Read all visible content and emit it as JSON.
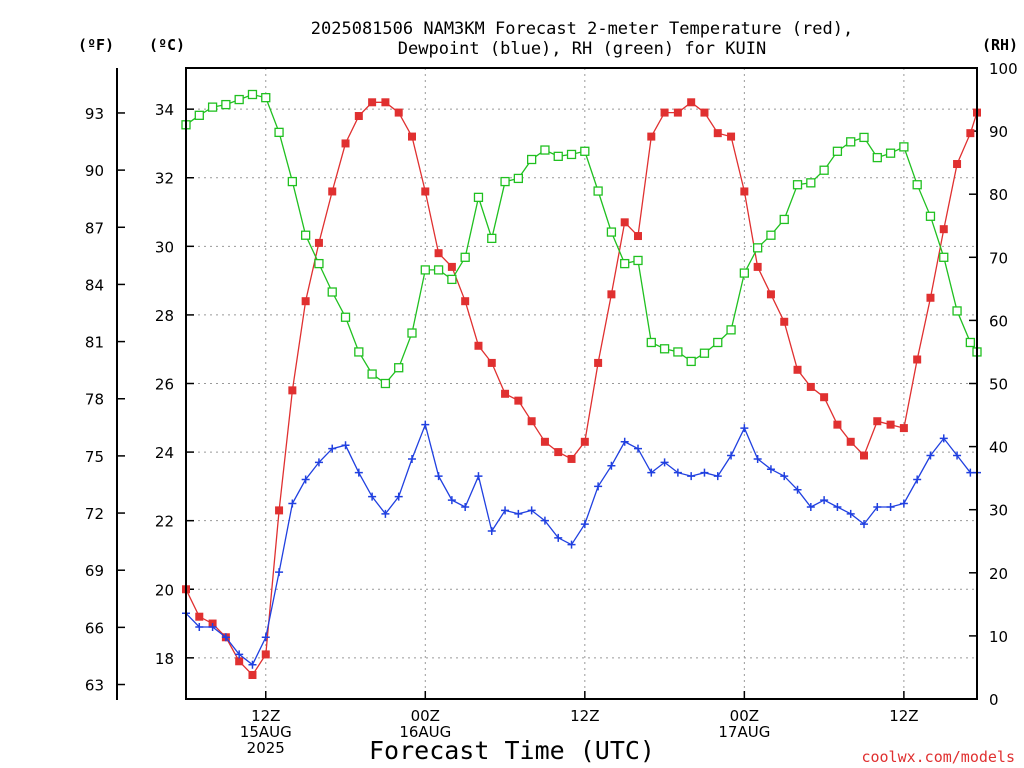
{
  "chart_data": {
    "type": "line",
    "title_lines": [
      "2025081506 NAM3KM Forecast 2-meter Temperature (red),",
      "Dewpoint (blue), RH (green) for KUIN"
    ],
    "xlabel": "Forecast Time (UTC)",
    "credit": "coolwx.com/models",
    "units": {
      "fahrenheit": "(ºF)",
      "celsius": "(ºC)",
      "rh": "(RH)"
    },
    "x_ticks": [
      {
        "hour": 12,
        "lines": [
          "12Z",
          "15AUG",
          "2025"
        ]
      },
      {
        "hour": 24,
        "lines": [
          "00Z",
          "16AUG"
        ]
      },
      {
        "hour": 36,
        "lines": [
          "12Z"
        ]
      },
      {
        "hour": 48,
        "lines": [
          "00Z",
          "17AUG"
        ]
      },
      {
        "hour": 60,
        "lines": [
          "12Z"
        ]
      }
    ],
    "xlim": [
      6,
      65.5
    ],
    "celsius_ticks": [
      18,
      20,
      22,
      24,
      26,
      28,
      30,
      32,
      34
    ],
    "celsius_lim": [
      16.8,
      35.2
    ],
    "fahrenheit_ticks": [
      63,
      66,
      69,
      72,
      75,
      78,
      81,
      84,
      87,
      90,
      93
    ],
    "rh_ticks": [
      0,
      10,
      20,
      30,
      40,
      50,
      60,
      70,
      80,
      90,
      100
    ],
    "rh_lim": [
      0,
      100
    ],
    "grid": true,
    "series": [
      {
        "name": "Temperature",
        "unit": "C",
        "color": "#e03030",
        "marker": "filled-square",
        "x": [
          6,
          7,
          8,
          9,
          10,
          11,
          12,
          13,
          14,
          15,
          16,
          17,
          18,
          19,
          20,
          21,
          22,
          23,
          24,
          25,
          26,
          27,
          28,
          29,
          30,
          31,
          32,
          33,
          34,
          35,
          36,
          37,
          38,
          39,
          40,
          41,
          42,
          43,
          44,
          45,
          46,
          47,
          48,
          49,
          50,
          51,
          52,
          53,
          54,
          55,
          56,
          57,
          58,
          59,
          60,
          61,
          62,
          63,
          64,
          65,
          65.5
        ],
        "values": [
          20.0,
          19.2,
          19.0,
          18.6,
          17.9,
          17.5,
          18.1,
          22.3,
          25.8,
          28.4,
          30.1,
          31.6,
          33.0,
          33.8,
          34.2,
          34.2,
          33.9,
          33.2,
          31.6,
          29.8,
          29.4,
          28.4,
          27.1,
          26.6,
          25.7,
          25.5,
          24.9,
          24.3,
          24.0,
          23.8,
          24.3,
          26.6,
          28.6,
          30.7,
          30.3,
          33.2,
          33.9,
          33.9,
          34.2,
          33.9,
          33.3,
          33.2,
          31.6,
          29.4,
          28.6,
          27.8,
          26.4,
          25.9,
          25.6,
          24.8,
          24.3,
          23.9,
          24.9,
          24.8,
          24.7,
          26.7,
          28.5,
          30.5,
          32.4,
          33.3,
          33.9
        ]
      },
      {
        "name": "Dewpoint",
        "unit": "C",
        "color": "#2040e0",
        "marker": "plus",
        "x": [
          6,
          7,
          8,
          9,
          10,
          11,
          12,
          13,
          14,
          15,
          16,
          17,
          18,
          19,
          20,
          21,
          22,
          23,
          24,
          25,
          26,
          27,
          28,
          29,
          30,
          31,
          32,
          33,
          34,
          35,
          36,
          37,
          38,
          39,
          40,
          41,
          42,
          43,
          44,
          45,
          46,
          47,
          48,
          49,
          50,
          51,
          52,
          53,
          54,
          55,
          56,
          57,
          58,
          59,
          60,
          61,
          62,
          63,
          64,
          65,
          65.5
        ],
        "values": [
          19.3,
          18.9,
          18.9,
          18.6,
          18.1,
          17.8,
          18.6,
          20.5,
          22.5,
          23.2,
          23.7,
          24.1,
          24.2,
          23.4,
          22.7,
          22.2,
          22.7,
          23.8,
          24.8,
          23.3,
          22.6,
          22.4,
          23.3,
          21.7,
          22.3,
          22.2,
          22.3,
          22.0,
          21.5,
          21.3,
          21.9,
          23.0,
          23.6,
          24.3,
          24.1,
          23.4,
          23.7,
          23.4,
          23.3,
          23.4,
          23.3,
          23.9,
          24.7,
          23.8,
          23.5,
          23.3,
          22.9,
          22.4,
          22.6,
          22.4,
          22.2,
          21.9,
          22.4,
          22.4,
          22.5,
          23.2,
          23.9,
          24.4,
          23.9,
          23.4,
          23.4
        ]
      },
      {
        "name": "RH",
        "unit": "%",
        "color": "#20c020",
        "marker": "open-square",
        "x": [
          6,
          7,
          8,
          9,
          10,
          11,
          12,
          13,
          14,
          15,
          16,
          17,
          18,
          19,
          20,
          21,
          22,
          23,
          24,
          25,
          26,
          27,
          28,
          29,
          30,
          31,
          32,
          33,
          34,
          35,
          36,
          37,
          38,
          39,
          40,
          41,
          42,
          43,
          44,
          45,
          46,
          47,
          48,
          49,
          50,
          51,
          52,
          53,
          54,
          55,
          56,
          57,
          58,
          59,
          60,
          61,
          62,
          63,
          64,
          65,
          65.5
        ],
        "values": [
          91,
          92.5,
          93.8,
          94.2,
          95,
          95.8,
          95.3,
          89.8,
          82,
          73.5,
          69,
          64.5,
          60.5,
          55,
          51.5,
          50,
          52.5,
          58,
          68,
          68,
          66.5,
          70,
          79.5,
          73,
          82,
          82.5,
          85.5,
          87,
          86,
          86.3,
          86.8,
          80.5,
          74,
          69,
          69.5,
          56.5,
          55.5,
          55,
          53.5,
          54.8,
          56.5,
          58.5,
          67.5,
          71.5,
          73.5,
          76,
          81.5,
          81.8,
          83.8,
          86.8,
          88.3,
          89,
          85.8,
          86.5,
          87.5,
          81.5,
          76.5,
          70,
          61.5,
          56.5,
          55
        ]
      }
    ]
  }
}
